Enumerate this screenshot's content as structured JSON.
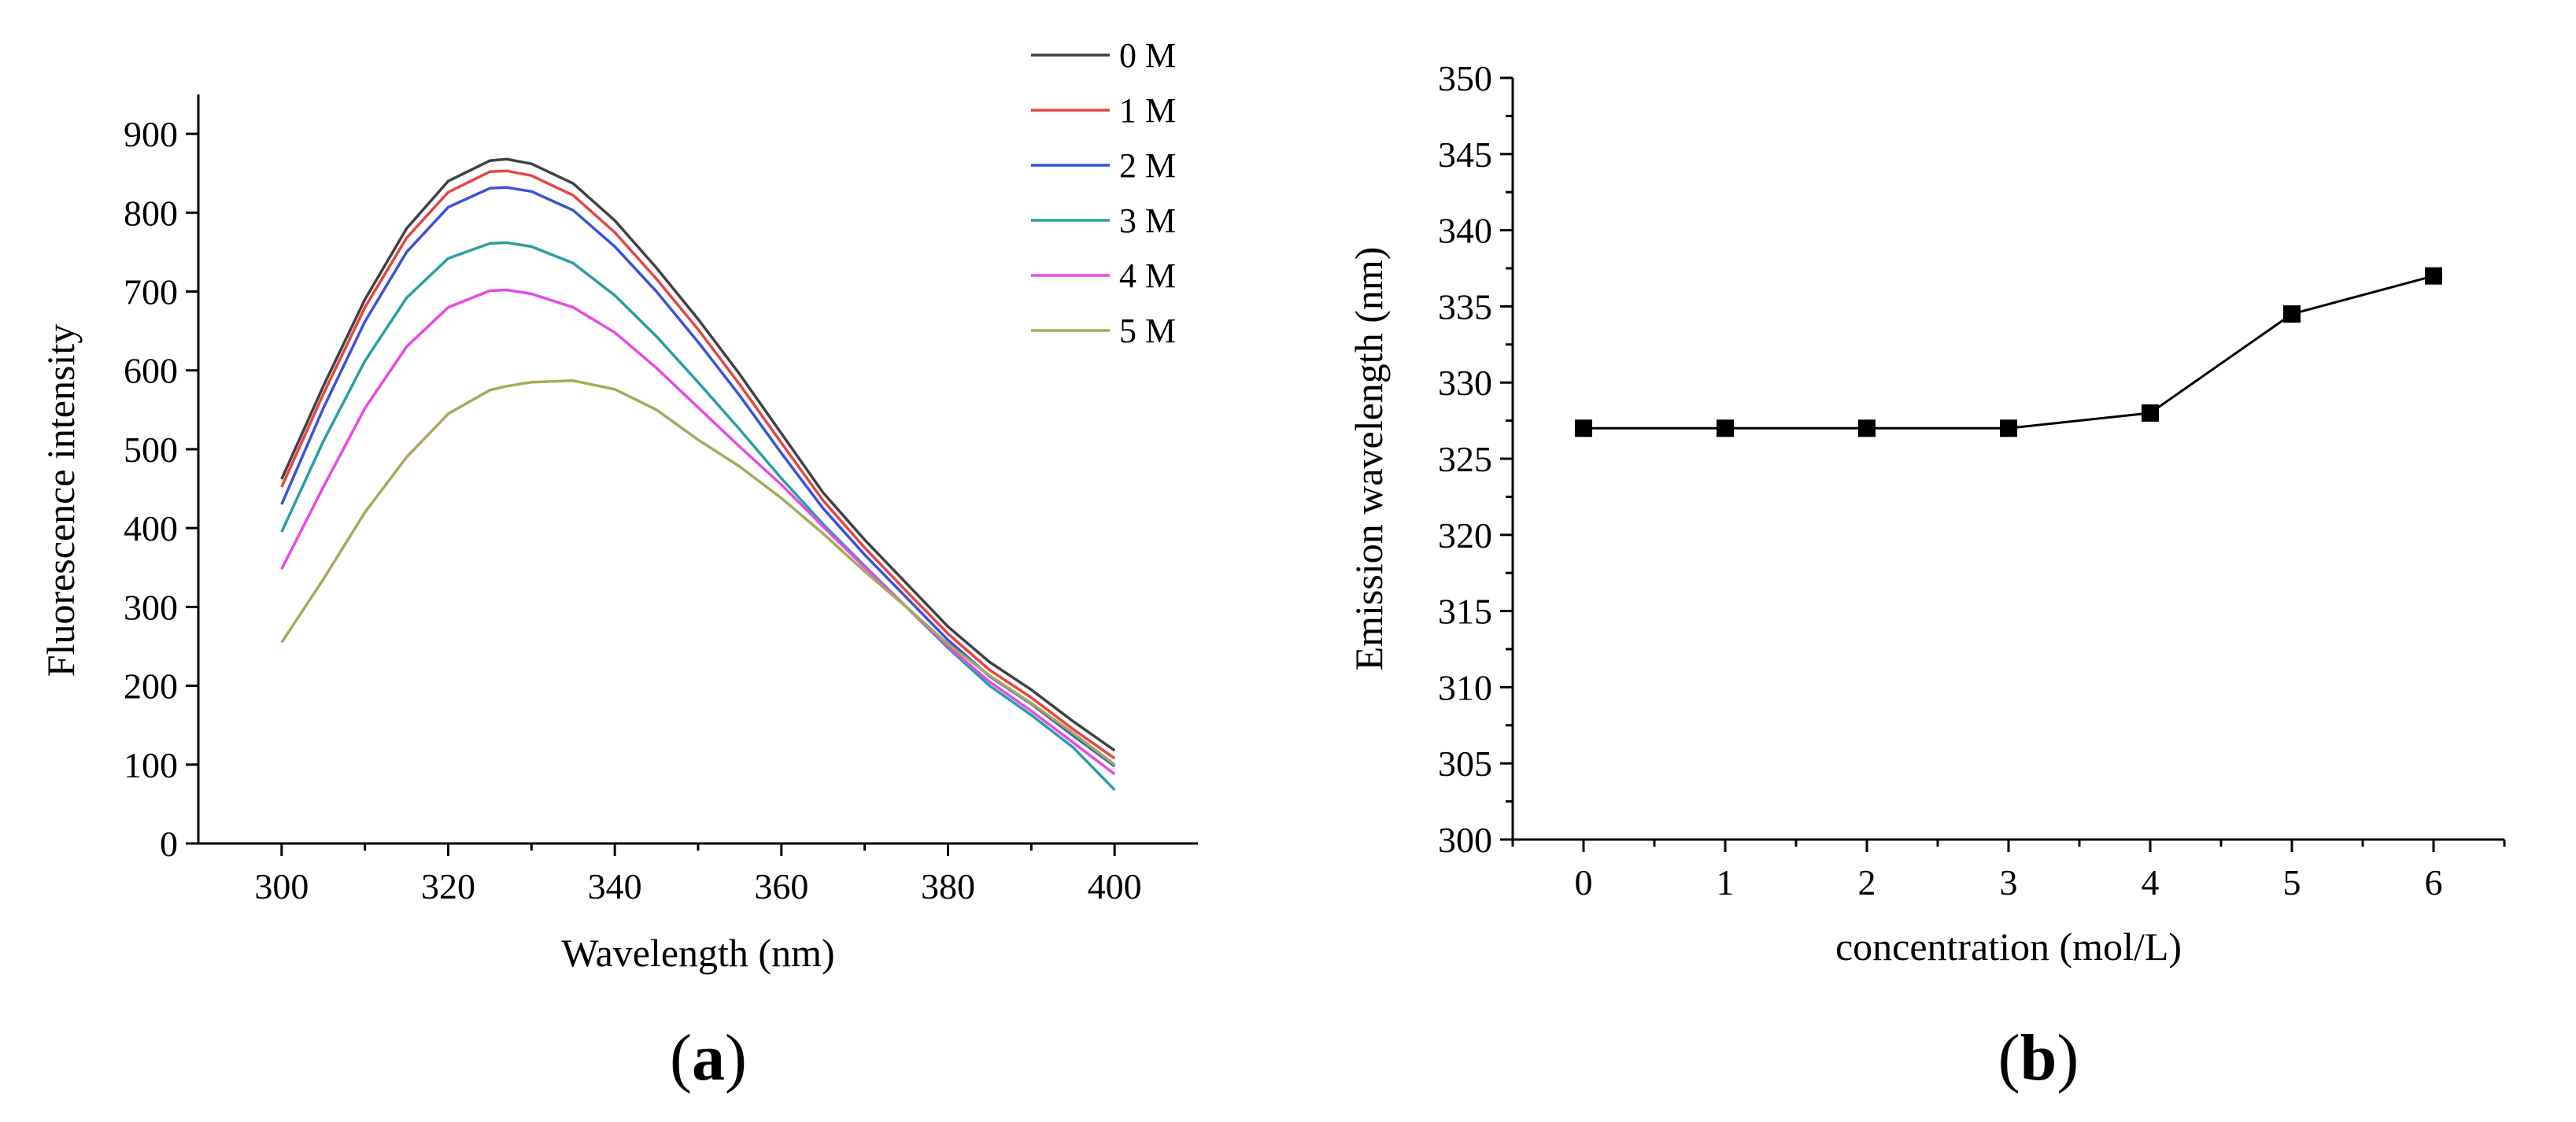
{
  "figure": {
    "panel_a_label": "a",
    "panel_b_label": "b",
    "paren_open": "(",
    "paren_close": ")"
  },
  "chart_data": [
    {
      "panel": "a",
      "type": "line",
      "xlabel": "Wavelength (nm)",
      "ylabel": "Fluorescence intensity",
      "xlim": [
        290,
        410
      ],
      "ylim": [
        0,
        950
      ],
      "xticks": [
        300,
        320,
        340,
        360,
        380,
        400
      ],
      "yticks": [
        0,
        100,
        200,
        300,
        400,
        500,
        600,
        700,
        800,
        900
      ],
      "grid": false,
      "legend_position": "top-right",
      "x": [
        300,
        305,
        310,
        315,
        320,
        325,
        327,
        330,
        335,
        340,
        345,
        350,
        355,
        360,
        365,
        370,
        375,
        380,
        385,
        390,
        395,
        400
      ],
      "series": [
        {
          "name": "0 M",
          "color": "#404040",
          "values": [
            462,
            580,
            690,
            780,
            840,
            866,
            868,
            862,
            837,
            790,
            730,
            665,
            595,
            520,
            445,
            385,
            330,
            275,
            230,
            195,
            155,
            118
          ]
        },
        {
          "name": "1 M",
          "color": "#e64545",
          "values": [
            452,
            570,
            680,
            768,
            826,
            852,
            853,
            847,
            822,
            775,
            716,
            652,
            582,
            508,
            435,
            375,
            320,
            266,
            220,
            185,
            145,
            108
          ]
        },
        {
          "name": "2 M",
          "color": "#3a52d9",
          "values": [
            430,
            552,
            662,
            750,
            807,
            831,
            832,
            827,
            803,
            757,
            700,
            636,
            568,
            495,
            425,
            366,
            312,
            258,
            212,
            177,
            137,
            98
          ]
        },
        {
          "name": "3 M",
          "color": "#2a9fa0",
          "values": [
            395,
            510,
            612,
            692,
            742,
            761,
            762,
            757,
            736,
            695,
            643,
            585,
            525,
            463,
            405,
            352,
            300,
            248,
            200,
            163,
            122,
            68
          ]
        },
        {
          "name": "4 M",
          "color": "#e64ae6",
          "values": [
            348,
            452,
            552,
            630,
            680,
            701,
            702,
            697,
            680,
            648,
            603,
            553,
            503,
            455,
            402,
            350,
            300,
            250,
            205,
            168,
            128,
            88
          ]
        },
        {
          "name": "5 M",
          "color": "#a8a85a",
          "values": [
            255,
            335,
            420,
            490,
            545,
            575,
            580,
            585,
            587,
            576,
            550,
            512,
            478,
            438,
            393,
            345,
            300,
            253,
            213,
            178,
            140,
            100
          ]
        }
      ]
    },
    {
      "panel": "b",
      "type": "line",
      "xlabel": "concentration (mol/L)",
      "ylabel": "Emission wavelength (nm)",
      "xlim": [
        -0.5,
        6.5
      ],
      "ylim": [
        300,
        350
      ],
      "xticks": [
        0,
        1,
        2,
        3,
        4,
        5,
        6
      ],
      "yticks": [
        300,
        305,
        310,
        315,
        320,
        325,
        330,
        335,
        340,
        345,
        350
      ],
      "grid": false,
      "marker": "square",
      "series": [
        {
          "color": "#000000",
          "x": [
            0,
            1,
            2,
            3,
            4,
            5,
            6
          ],
          "values": [
            327,
            327,
            327,
            327,
            328,
            334.5,
            337
          ]
        }
      ]
    }
  ]
}
